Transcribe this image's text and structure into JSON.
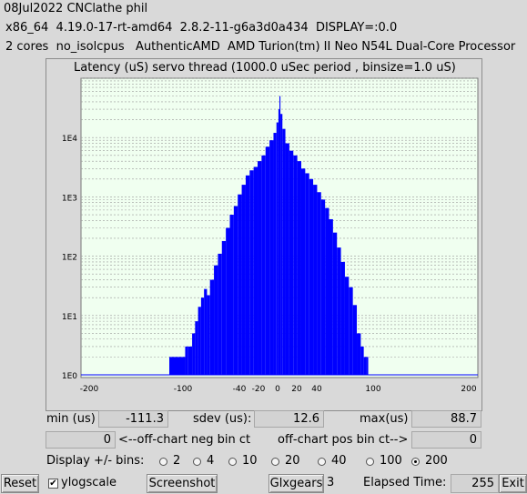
{
  "header": {
    "title": "08Jul2022 CNClathe phil",
    "system_info": "x86_64  4.19.0-17-rt-amd64  2.8.2-11-g6a3d0a434  DISPLAY=:0.0",
    "cpu_info": "2 cores  no_isolcpus   AuthenticAMD  AMD Turion(tm) II Neo N54L Dual-Core Processor"
  },
  "chart_data": {
    "type": "bar",
    "title": "Latency (uS) servo thread (1000.0 uSec period , binsize=1.0 uS)",
    "xlabel": "",
    "ylabel": "",
    "x_ticks": [
      -200,
      -100,
      -40,
      -20,
      0,
      20,
      40,
      100,
      200
    ],
    "y_ticks": [
      "1E0",
      "1E1",
      "1E2",
      "1E3",
      "1E4"
    ],
    "y_scale": "log",
    "ylim": [
      1,
      100000
    ],
    "xlim": [
      -200,
      200
    ],
    "grid": true,
    "bar_color": "#0000ff",
    "plot_background": "#f0fff0",
    "x": [
      -111,
      -95,
      -92,
      -88,
      -85,
      -82,
      -79,
      -76,
      -73,
      -70,
      -66,
      -62,
      -58,
      -54,
      -50,
      -46,
      -42,
      -38,
      -34,
      -30,
      -26,
      -22,
      -18,
      -14,
      -10,
      -6,
      -3,
      -1,
      0,
      1,
      3,
      6,
      10,
      14,
      18,
      22,
      26,
      30,
      34,
      38,
      42,
      46,
      50,
      54,
      58,
      62,
      66,
      70,
      74,
      78,
      82,
      85,
      88
    ],
    "values": [
      2,
      3,
      3,
      5,
      8,
      14,
      20,
      28,
      22,
      40,
      70,
      110,
      180,
      300,
      500,
      700,
      1100,
      1600,
      2300,
      2800,
      3200,
      4000,
      5000,
      7000,
      9000,
      12000,
      18000,
      30000,
      50000,
      25000,
      14000,
      8000,
      6000,
      5000,
      4000,
      3000,
      2500,
      2000,
      1600,
      1200,
      900,
      650,
      420,
      250,
      140,
      80,
      45,
      30,
      15,
      5,
      3,
      2,
      2
    ]
  },
  "stats": {
    "min_label": "min (us)",
    "min_value": "-111.3",
    "sdev_label": "sdev (us):",
    "sdev_value": "12.6",
    "max_label": "max(us)",
    "max_value": "88.7",
    "neg_bin_value": "0",
    "neg_bin_label": "<--off-chart neg bin ct",
    "pos_bin_label": "off-chart pos bin ct-->",
    "pos_bin_value": "0"
  },
  "bins": {
    "label": "Display +/- bins:",
    "options": [
      "2",
      "4",
      "10",
      "20",
      "40",
      "100",
      "200"
    ],
    "selected": "200"
  },
  "bottom": {
    "reset_label": "Reset",
    "ylogscale_label": "ylogscale",
    "ylogscale_checked": true,
    "screenshot_label": "Screenshot",
    "glxgears_label": "Glxgears",
    "glxgears_count": "3",
    "elapsed_label": "Elapsed Time:",
    "elapsed_value": "255",
    "exit_label": "Exit"
  }
}
